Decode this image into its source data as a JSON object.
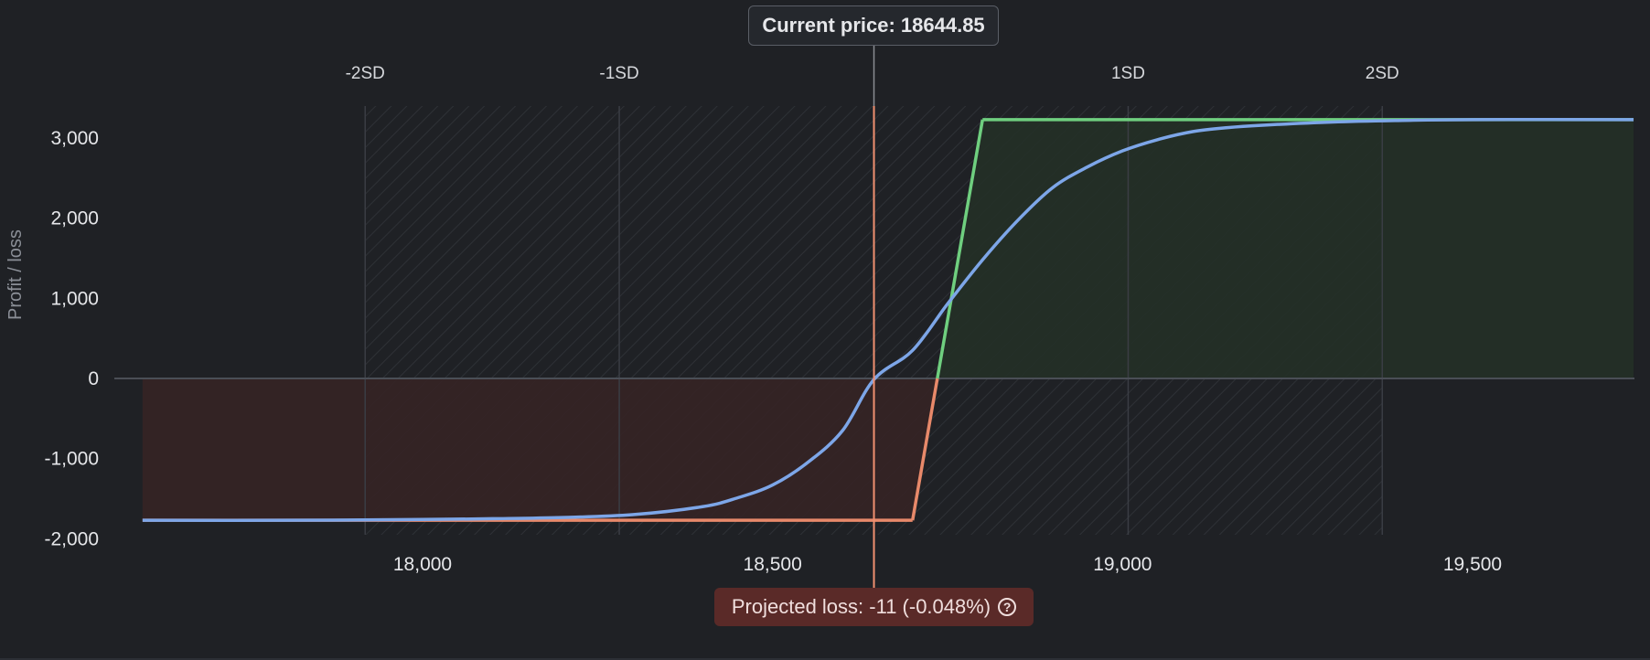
{
  "current_price_label": "Current price: 18644.85",
  "projected_loss_label": "Projected loss: -11 (-0.048%)",
  "help_icon": "question-circle-icon",
  "colors": {
    "background": "#1f2125",
    "grid": "#3a3d44",
    "zero_line": "#4a4e56",
    "expiry_profit": "#6fcf7f",
    "expiry_loss": "#e8896a",
    "theoretical": "#7da6e8",
    "current_price_line": "#f09070",
    "profit_fill": "#243027",
    "loss_fill": "#352425",
    "hatch": "#2e3136"
  },
  "chart_data": {
    "type": "line",
    "title": "",
    "xlabel": "",
    "ylabel": "Profit / loss",
    "xlim": [
      17600,
      19730
    ],
    "ylim": [
      -2000,
      3000
    ],
    "x_ticks": [
      18000,
      18500,
      19000,
      19500
    ],
    "x_tick_labels": [
      "18,000",
      "18,500",
      "19,000",
      "19,500"
    ],
    "y_ticks": [
      3000,
      2000,
      1000,
      0,
      -1000,
      -2000
    ],
    "y_tick_labels": [
      "3,000",
      "2,000",
      "1,000",
      "0",
      "-1,000",
      "-2,000"
    ],
    "sd_markers": [
      {
        "label": "-2SD",
        "x": 17918
      },
      {
        "label": "-1SD",
        "x": 18281
      },
      {
        "label": "1SD",
        "x": 19008
      },
      {
        "label": "2SD",
        "x": 19371
      }
    ],
    "hatched_range": [
      17918,
      19371
    ],
    "current_price": 18644.85,
    "series": [
      {
        "name": "",
        "kind": "expiry",
        "x": [
          17600,
          18700,
          18800,
          19730
        ],
        "y": [
          -1770,
          -1770,
          3230,
          3230
        ]
      },
      {
        "name": "",
        "kind": "theoretical",
        "x": [
          17600,
          17800,
          18000,
          18100,
          18200,
          18300,
          18400,
          18450,
          18500,
          18550,
          18600,
          18645,
          18700,
          18750,
          18800,
          18850,
          18900,
          18950,
          19000,
          19050,
          19100,
          19150,
          19200,
          19300,
          19400,
          19500,
          19730
        ],
        "y": [
          -1770,
          -1770,
          -1760,
          -1750,
          -1735,
          -1700,
          -1600,
          -1490,
          -1330,
          -1050,
          -650,
          -11,
          350,
          930,
          1480,
          1970,
          2380,
          2640,
          2840,
          2980,
          3080,
          3130,
          3160,
          3200,
          3220,
          3230,
          3230
        ]
      }
    ]
  }
}
